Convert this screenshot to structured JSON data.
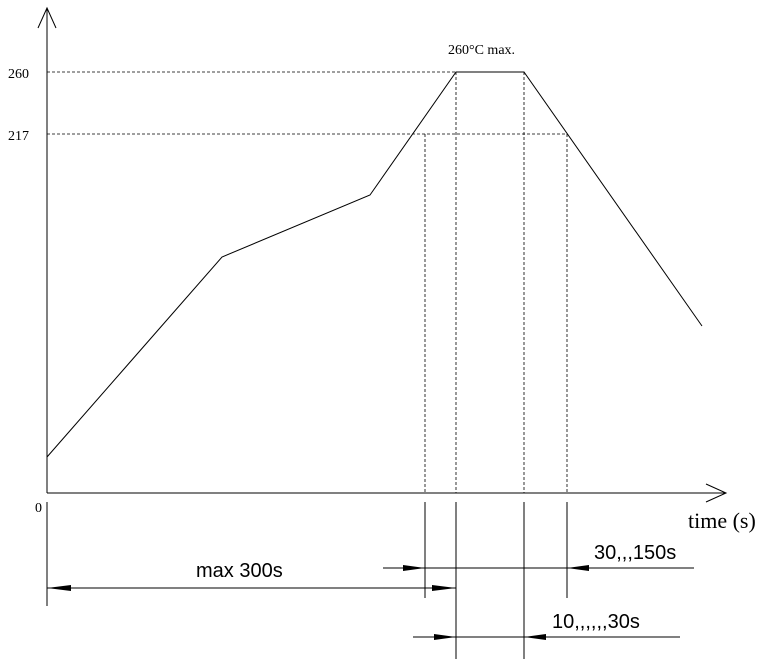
{
  "diagram": {
    "peak_label": "260°C max.",
    "y_tick_260": "260",
    "y_tick_217": "217",
    "origin_label": "0",
    "x_axis_label": "time (s)",
    "max_time_label": "max 300s",
    "above_liquidus_label": "30,,,150s",
    "peak_time_label": "10,,,,,,30s",
    "line_color": "#000000",
    "background_color": "#ffffff"
  }
}
